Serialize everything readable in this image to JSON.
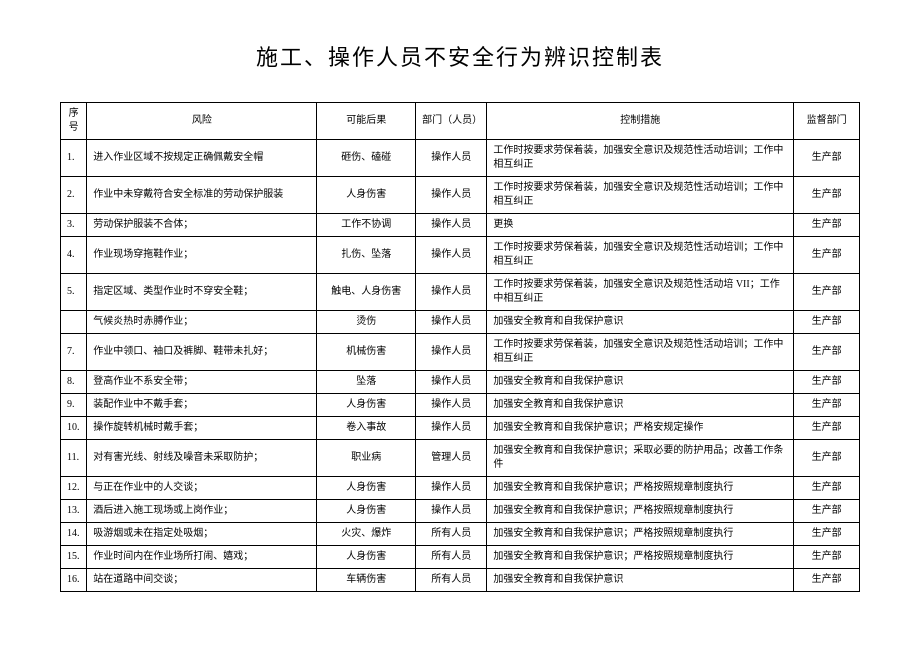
{
  "title": "施工、操作人员不安全行为辨识控制表",
  "headers": {
    "no": "序号",
    "risk": "风险",
    "result": "可能后果",
    "dept": "部门（人员）",
    "measure": "控制措施",
    "supervision": "监督部门"
  },
  "rows": [
    {
      "no": "1.",
      "risk": "进入作业区域不按规定正确佩戴安全帽",
      "result": "砸伤、磕碰",
      "dept": "操作人员",
      "measure": "工作时按要求劳保着装，加强安全意识及规范性活动培训；工作中相互纠正",
      "sup": "生产部"
    },
    {
      "no": "2.",
      "risk": "作业中未穿戴符合安全标准的劳动保护服装",
      "result": "人身伤害",
      "dept": "操作人员",
      "measure": "工作时按要求劳保着装，加强安全意识及规范性活动培训；工作中相互纠正",
      "sup": "生产部"
    },
    {
      "no": "3.",
      "risk": "劳动保护服装不合体；",
      "result": "工作不协调",
      "dept": "操作人员",
      "measure": "更换",
      "sup": "生产部"
    },
    {
      "no": "4.",
      "risk": "作业现场穿拖鞋作业；",
      "result": "扎伤、坠落",
      "dept": "操作人员",
      "measure": "工作时按要求劳保着装，加强安全意识及规范性活动培训；工作中相互纠正",
      "sup": "生产部"
    },
    {
      "no": "5.",
      "risk": "指定区域、类型作业时不穿安全鞋；",
      "result": "触电、人身伤害",
      "dept": "操作人员",
      "measure": "工作时按要求劳保着装，加强安全意识及规范性活动培 VII；工作中相互纠正",
      "sup": "生产部"
    },
    {
      "no": "",
      "risk": "气候炎热时赤膊作业；",
      "result": "烫伤",
      "dept": "操作人员",
      "measure": "加强安全教育和自我保护意识",
      "sup": "生产部"
    },
    {
      "no": "7.",
      "risk": "作业中领口、袖口及裤脚、鞋带未扎好；",
      "result": "机械伤害",
      "dept": "操作人员",
      "measure": "工作时按要求劳保着装，加强安全意识及规范性活动培训；工作中相互纠正",
      "sup": "生产部"
    },
    {
      "no": "8.",
      "risk": "登高作业不系安全带；",
      "result": "坠落",
      "dept": "操作人员",
      "measure": "加强安全教育和自我保护意识",
      "sup": "生产部"
    },
    {
      "no": "9.",
      "risk": "装配作业中不戴手套；",
      "result": "人身伤害",
      "dept": "操作人员",
      "measure": "加强安全教育和自我保护意识",
      "sup": "生产部"
    },
    {
      "no": "10.",
      "risk": "操作旋转机械时戴手套；",
      "result": "卷入事故",
      "dept": "操作人员",
      "measure": "加强安全教育和自我保护意识；严格安规定操作",
      "sup": "生产部"
    },
    {
      "no": "11.",
      "risk": "对有害光线、射线及噪音未采取防护；",
      "result": "职业病",
      "dept": "管理人员",
      "measure": "加强安全教育和自我保护意识；采取必要的防护用品；改善工作条件",
      "sup": "生产部"
    },
    {
      "no": "12.",
      "risk": "与正在作业中的人交谈；",
      "result": "人身伤害",
      "dept": "操作人员",
      "measure": "加强安全教育和自我保护意识；严格按照规章制度执行",
      "sup": "生产部"
    },
    {
      "no": "13.",
      "risk": "酒后进入施工现场或上岗作业；",
      "result": "人身伤害",
      "dept": "操作人员",
      "measure": "加强安全教育和自我保护意识；严格按照规章制度执行",
      "sup": "生产部"
    },
    {
      "no": "14.",
      "risk": "吸游烟或未在指定处吸烟；",
      "result": "火灾、爆炸",
      "dept": "所有人员",
      "measure": "加强安全教育和自我保护意识；严格按照规章制度执行",
      "sup": "生产部"
    },
    {
      "no": "15.",
      "risk": "作业时间内在作业场所打闹、嬉戏；",
      "result": "人身伤害",
      "dept": "所有人员",
      "measure": "加强安全教育和自我保护意识；严格按照规章制度执行",
      "sup": "生产部"
    },
    {
      "no": "16.",
      "risk": "站在道路中间交谈；",
      "result": "车辆伤害",
      "dept": "所有人员",
      "measure": "加强安全教育和自我保护意识",
      "sup": "生产部"
    }
  ]
}
